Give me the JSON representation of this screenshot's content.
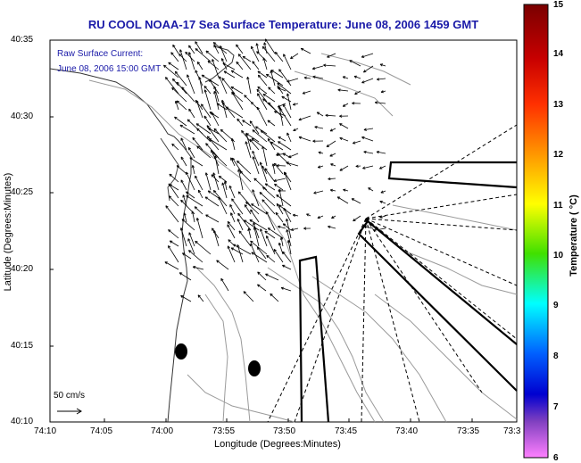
{
  "title": "RU COOL  NOAA-17  Sea Surface Temperature:  June 08, 2006 1459 GMT",
  "legend": {
    "line1": "Raw Surface Current:",
    "line2": "June 08, 2006 15:00 GMT"
  },
  "axes": {
    "xlabel": "Longitude (Degrees:Minutes)",
    "ylabel": "Latitude (Degrees:Minutes)",
    "x_ticks": [
      "74:10",
      "74:05",
      "74:00",
      "73:55",
      "73:50",
      "73:45",
      "73:40",
      "73:35",
      "73:3"
    ],
    "y_ticks": [
      "40:35",
      "40:30",
      "40:25",
      "40:20",
      "40:15",
      "40:10"
    ]
  },
  "colorbar": {
    "label": "Temperature ( °C)",
    "ticks": [
      "15",
      "14",
      "13",
      "12",
      "11",
      "10",
      "9",
      "8",
      "7",
      "6"
    ],
    "colors": {
      "top": "#7a0000",
      "red": "#ff0000",
      "orange": "#ffa500",
      "yellow": "#ffff00",
      "green": "#00d000",
      "cyan": "#00ffff",
      "blue": "#0000ff",
      "violet": "#6020c0",
      "bottom": "#ff80ff"
    }
  },
  "scale": {
    "label": "50 cm/s"
  },
  "chart_data": {
    "type": "map",
    "x": {
      "min_label": "74:10",
      "max_label": "73:3"
    },
    "y": {
      "min_label": "40:10",
      "max_label": "40:35"
    }
  }
}
